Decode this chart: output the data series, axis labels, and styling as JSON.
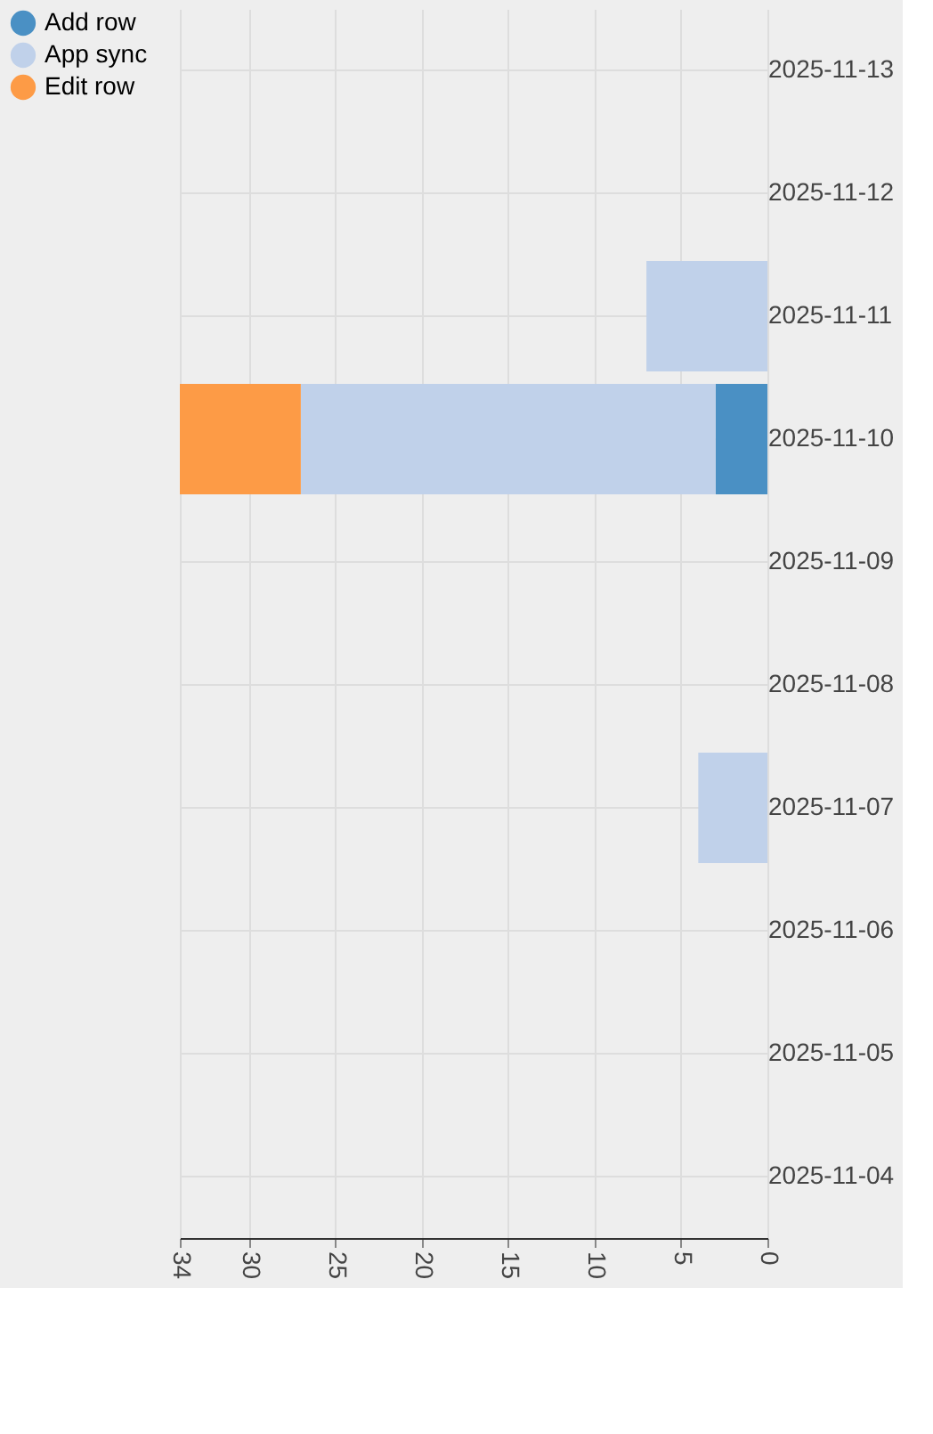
{
  "chart_data": {
    "type": "bar",
    "orientation": "horizontal",
    "stacked": true,
    "categories": [
      "2025-11-13",
      "2025-11-12",
      "2025-11-11",
      "2025-11-10",
      "2025-11-09",
      "2025-11-08",
      "2025-11-07",
      "2025-11-06",
      "2025-11-05",
      "2025-11-04"
    ],
    "series": [
      {
        "name": "Add row",
        "color": "#4a90c4",
        "values": [
          0,
          0,
          0,
          3,
          0,
          0,
          0,
          0,
          0,
          0
        ]
      },
      {
        "name": "App sync",
        "color": "#c0d1ea",
        "values": [
          0,
          0,
          7,
          24,
          0,
          0,
          4,
          0,
          0,
          0
        ]
      },
      {
        "name": "Edit row",
        "color": "#fd9b46",
        "values": [
          0,
          0,
          0,
          7,
          0,
          0,
          0,
          0,
          0,
          0
        ]
      }
    ],
    "xlim": [
      34,
      0
    ],
    "xticks": [
      34,
      30,
      25,
      20,
      15,
      10,
      5,
      0
    ],
    "grid": true,
    "legend": "top left"
  }
}
